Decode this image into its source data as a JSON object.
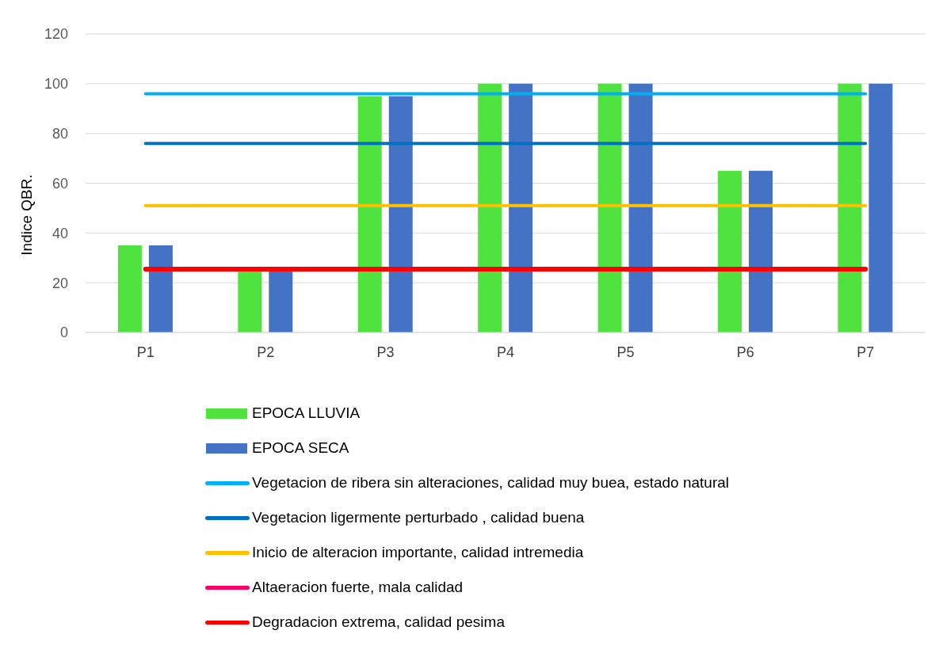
{
  "chart_data": {
    "type": "bar",
    "ylabel": "Indice QBR.",
    "categories": [
      "P1",
      "P2",
      "P3",
      "P4",
      "P5",
      "P6",
      "P7"
    ],
    "series": [
      {
        "name": "EPOCA LLUVIA",
        "color": "#50e33f",
        "values": [
          35,
          25,
          95,
          100,
          100,
          65,
          100
        ]
      },
      {
        "name": "EPOCA SECA",
        "color": "#4472c4",
        "values": [
          35,
          25,
          95,
          100,
          100,
          65,
          100
        ]
      },
      {
        "name": "Vegetacion de ribera sin alteraciones, calidad muy buea, estado natural",
        "type": "line",
        "color": "#00b0f0",
        "values": [
          96,
          96,
          96,
          96,
          96,
          96,
          96
        ]
      },
      {
        "name": "Vegetacion ligermente perturbado , calidad buena",
        "type": "line",
        "color": "#0070c0",
        "values": [
          76,
          76,
          76,
          76,
          76,
          76,
          76
        ]
      },
      {
        "name": "Inicio de alteracion importante, calidad intremedia",
        "type": "line",
        "color": "#ffc000",
        "values": [
          51,
          51,
          51,
          51,
          51,
          51,
          51
        ]
      },
      {
        "name": "Altaeracion fuerte, mala calidad",
        "type": "line",
        "color": "#ff0066",
        "values": [
          null,
          null,
          null,
          null,
          null,
          null,
          null
        ]
      },
      {
        "name": "Degradacion extrema, calidad pesima",
        "type": "line",
        "color": "#ff0000",
        "values": [
          25.5,
          25.5,
          25.5,
          25.5,
          25.5,
          25.5,
          25.5
        ]
      }
    ],
    "ylim": [
      0,
      120
    ],
    "yticks": [
      0,
      20,
      40,
      60,
      80,
      100,
      120
    ],
    "grid": "y",
    "legend": "bottom",
    "marker": "none",
    "line_style": "solid"
  }
}
